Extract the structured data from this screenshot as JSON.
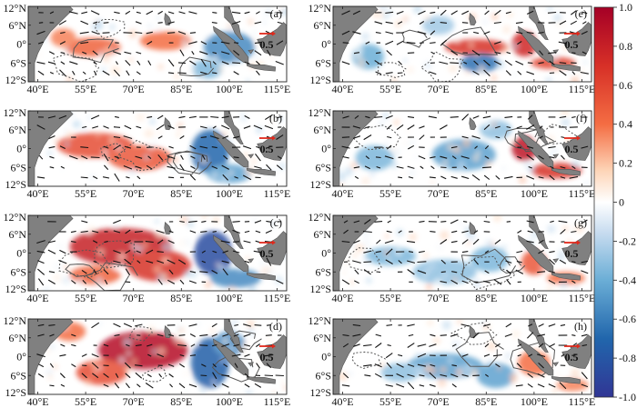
{
  "x_tick_labels": [
    "40°E",
    "55°E",
    "70°E",
    "85°E",
    "100°E",
    "115°E"
  ],
  "y_tick_labels": [
    "12°N",
    "6°N",
    "0°",
    "6°S",
    "12°S"
  ],
  "panels": [
    {
      "id": "a",
      "label": "(a)",
      "reference_vector": "0.5",
      "pattern": {
        "pos": [
          [
            57,
            -1,
            9,
            3,
            0.45
          ],
          [
            80,
            1,
            8,
            3,
            0.4
          ],
          [
            48,
            2,
            4,
            3,
            0.35
          ]
        ],
        "neg": [
          [
            100,
            -1,
            8,
            5,
            0.55
          ],
          [
            93,
            -8,
            5,
            3,
            0.35
          ]
        ]
      }
    },
    {
      "id": "b",
      "label": "(b)",
      "reference_vector": "0.5",
      "pattern": {
        "pos": [
          [
            58,
            1,
            12,
            4,
            0.55
          ],
          [
            72,
            -3,
            10,
            4,
            0.5
          ]
        ],
        "neg": [
          [
            94,
            -1,
            6,
            7,
            0.7
          ],
          [
            100,
            -8,
            7,
            3,
            0.45
          ]
        ]
      }
    },
    {
      "id": "c",
      "label": "(c)",
      "reference_vector": "0.5",
      "pattern": {
        "pos": [
          [
            66,
            2,
            16,
            6,
            0.8
          ],
          [
            78,
            -4,
            10,
            5,
            0.7
          ],
          [
            58,
            -7,
            8,
            3,
            0.45
          ]
        ],
        "neg": [
          [
            95,
            0,
            6,
            7,
            0.85
          ],
          [
            102,
            -8,
            8,
            3,
            0.55
          ]
        ]
      }
    },
    {
      "id": "d",
      "label": "(d)",
      "reference_vector": "0.5",
      "pattern": {
        "pos": [
          [
            73,
            2,
            14,
            6,
            0.9
          ],
          [
            60,
            -5,
            8,
            4,
            0.55
          ],
          [
            50,
            8,
            5,
            3,
            0.4
          ]
        ],
        "neg": [
          [
            94,
            -2,
            6,
            8,
            0.75
          ],
          [
            100,
            4,
            5,
            4,
            0.55
          ]
        ]
      }
    },
    {
      "id": "e",
      "label": "(e)",
      "reference_vector": "0.5",
      "pattern": {
        "pos": [
          [
            82,
            -1,
            10,
            2.5,
            0.7
          ],
          [
            97,
            0,
            4,
            4,
            0.75
          ],
          [
            106,
            -6,
            7,
            2,
            0.6
          ]
        ],
        "neg": [
          [
            83,
            -6,
            6,
            3,
            0.65
          ],
          [
            48,
            -4,
            5,
            4,
            0.4
          ],
          [
            70,
            6,
            5,
            3,
            0.25
          ]
        ]
      }
    },
    {
      "id": "f",
      "label": "(f)",
      "reference_vector": "0.5",
      "pattern": {
        "pos": [
          [
            97,
            0,
            4,
            4,
            0.85
          ],
          [
            107,
            -7,
            8,
            2.5,
            0.7
          ]
        ],
        "neg": [
          [
            78,
            -2,
            10,
            5,
            0.45
          ],
          [
            50,
            -3,
            6,
            4,
            0.35
          ],
          [
            88,
            6,
            5,
            3,
            0.3
          ]
        ]
      }
    },
    {
      "id": "g",
      "label": "(g)",
      "reference_vector": "0.5",
      "pattern": {
        "pos": [
          [
            100,
            -3,
            4,
            4,
            0.5
          ],
          [
            110,
            -8,
            6,
            2,
            0.4
          ]
        ],
        "neg": [
          [
            55,
            -1,
            8,
            3,
            0.35
          ],
          [
            72,
            -6,
            10,
            4,
            0.3
          ],
          [
            86,
            -2,
            6,
            4,
            0.35
          ]
        ]
      }
    },
    {
      "id": "h",
      "label": "(h)",
      "reference_vector": "0.5",
      "pattern": {
        "pos": [
          [
            100,
            -2,
            5,
            4,
            0.4
          ],
          [
            112,
            -9,
            5,
            2,
            0.35
          ]
        ],
        "neg": [
          [
            72,
            -3,
            12,
            4,
            0.45
          ],
          [
            88,
            -6,
            6,
            4,
            0.45
          ],
          [
            58,
            -5,
            6,
            3,
            0.3
          ]
        ]
      }
    }
  ],
  "colorbar": {
    "tick_labels": [
      "1.0",
      "0.8",
      "0.6",
      "0.4",
      "0.2",
      "0",
      "-0.2",
      "-0.4",
      "-0.6",
      "-0.8",
      "-1.0"
    ],
    "vmin": -1.0,
    "vmax": 1.0
  },
  "colors": {
    "positive": "#d73027",
    "negative": "#2166ac",
    "land": "#808080",
    "contour": "#555555",
    "vector": "#111111",
    "reference_vector": "#e0291c"
  }
}
